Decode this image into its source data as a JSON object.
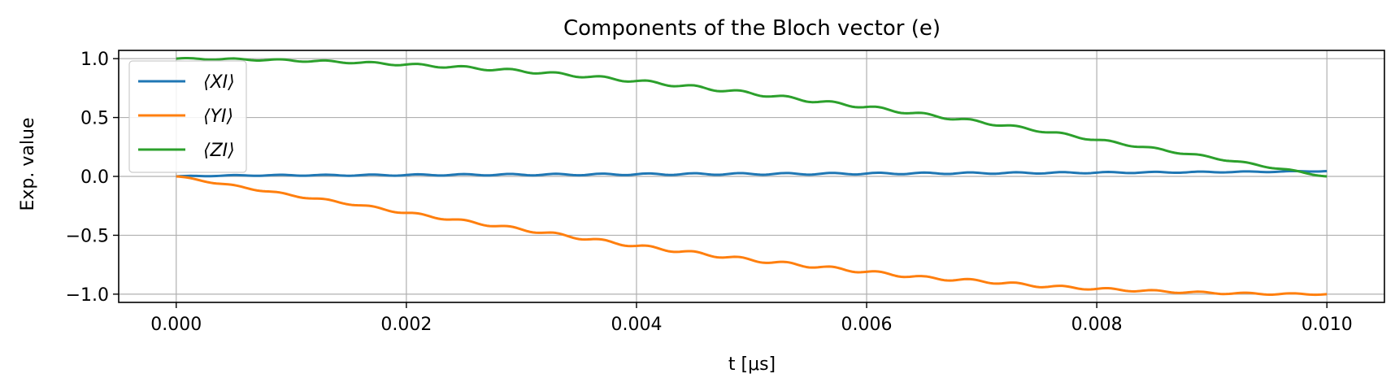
{
  "chart_data": {
    "type": "line",
    "title": "Components of the Bloch vector (e)",
    "xlabel": "t [μs]",
    "ylabel": "Exp. value",
    "xlim": [
      -0.0005,
      0.0105
    ],
    "ylim": [
      -1.07,
      1.07
    ],
    "xticks": [
      {
        "value": 0.0,
        "label": "0.000"
      },
      {
        "value": 0.002,
        "label": "0.002"
      },
      {
        "value": 0.004,
        "label": "0.004"
      },
      {
        "value": 0.006,
        "label": "0.006"
      },
      {
        "value": 0.008,
        "label": "0.008"
      },
      {
        "value": 0.01,
        "label": "0.010"
      }
    ],
    "yticks": [
      {
        "value": 1.0,
        "label": "1.0"
      },
      {
        "value": 0.5,
        "label": "0.5"
      },
      {
        "value": 0.0,
        "label": "0.0"
      },
      {
        "value": -0.5,
        "label": "−0.5"
      },
      {
        "value": -1.0,
        "label": "−1.0"
      }
    ],
    "grid": true,
    "legend_position": "top-left",
    "x": [
      0.0,
      0.0005,
      0.001,
      0.0015,
      0.002,
      0.0025,
      0.003,
      0.0035,
      0.004,
      0.0045,
      0.005,
      0.0055,
      0.006,
      0.0065,
      0.007,
      0.0075,
      0.008,
      0.0085,
      0.009,
      0.0095,
      0.01
    ],
    "series": [
      {
        "name": "⟨XI⟩",
        "color": "#1f77b4",
        "values": [
          0.0,
          0.008,
          0.01,
          0.01,
          0.012,
          0.014,
          0.015,
          0.016,
          0.018,
          0.02,
          0.021,
          0.022,
          0.024,
          0.026,
          0.028,
          0.03,
          0.032,
          0.034,
          0.037,
          0.04,
          0.045
        ]
      },
      {
        "name": "⟨YI⟩",
        "color": "#ff7f0e",
        "values": [
          0.0,
          -0.08,
          -0.16,
          -0.23,
          -0.31,
          -0.38,
          -0.45,
          -0.52,
          -0.59,
          -0.65,
          -0.71,
          -0.76,
          -0.81,
          -0.86,
          -0.89,
          -0.93,
          -0.955,
          -0.975,
          -0.99,
          -0.998,
          -1.0
        ]
      },
      {
        "name": "⟨ZI⟩",
        "color": "#2ca02c",
        "values": [
          1.0,
          0.995,
          0.985,
          0.97,
          0.95,
          0.925,
          0.895,
          0.855,
          0.81,
          0.76,
          0.705,
          0.645,
          0.59,
          0.525,
          0.46,
          0.39,
          0.31,
          0.235,
          0.16,
          0.08,
          0.0
        ]
      }
    ]
  }
}
